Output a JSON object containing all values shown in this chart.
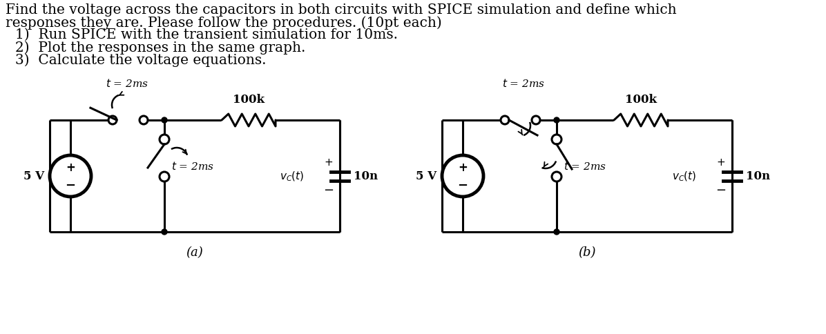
{
  "bg_color": "#ffffff",
  "text_color": "#000000",
  "line1": "Find the voltage across the capacitors in both circuits with SPICE simulation and define which",
  "line2": "responses they are. Please follow the procedures. (10pt each)",
  "item1": "1)  Run SPICE with the transient simulation for 10ms.",
  "item2": "2)  Plot the responses in the same graph.",
  "item3": "3)  Calculate the voltage equations.",
  "label_a": "(a)",
  "label_b": "(b)",
  "label_5V": "5 V",
  "label_100k": "100k",
  "label_10n": "10n",
  "label_t2ms": "$t$ = 2ms",
  "label_vc": "$v_C(t)$",
  "lw_circuit": 2.2,
  "lw_thick": 3.5,
  "fs_text": 14.5,
  "fs_label": 12,
  "fs_small": 11
}
